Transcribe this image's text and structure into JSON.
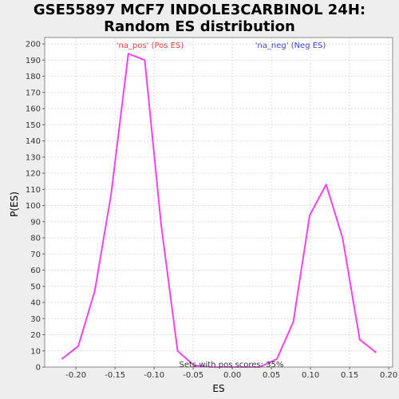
{
  "chart_data": {
    "type": "line",
    "title": [
      "GSE55897 MCF7 INDOLE3CARBINOL 24H:",
      "Random ES distribution"
    ],
    "xlabel": "ES",
    "ylabel": "P(ES)",
    "xlim": [
      -0.24,
      0.205
    ],
    "ylim": [
      0,
      204
    ],
    "x_ticks": [
      -0.2,
      -0.15,
      -0.1,
      -0.05,
      0.0,
      0.05,
      0.1,
      0.15,
      0.2
    ],
    "x_tick_labels": [
      "-0.20",
      "-0.15",
      "-0.10",
      "-0.05",
      "0.00",
      "0.05",
      "0.10",
      "0.15",
      "0.20"
    ],
    "y_ticks": [
      0,
      10,
      20,
      30,
      40,
      50,
      60,
      70,
      80,
      90,
      100,
      110,
      120,
      130,
      140,
      150,
      160,
      170,
      180,
      190,
      200
    ],
    "grid": true,
    "series": [
      {
        "name": "'na_pos' (Pos ES)",
        "color": "#ee44ee",
        "x": [
          -0.218,
          -0.197,
          -0.176,
          -0.155,
          -0.133,
          -0.112,
          -0.091,
          -0.07,
          -0.049,
          -0.028,
          -0.007,
          0.014,
          0.035,
          0.057,
          0.078,
          0.099,
          0.12,
          0.141,
          0.163,
          0.184
        ],
        "y": [
          5,
          13,
          47,
          107,
          194,
          190,
          88,
          10,
          1,
          0,
          0,
          0,
          0,
          5,
          28,
          94,
          113,
          80,
          17,
          9
        ]
      }
    ],
    "legend": [
      {
        "label": "'na_pos' (Pos ES)",
        "color": "#dd4444"
      },
      {
        "label": "'na_neg' (Neg ES)",
        "color": "#4444cc"
      }
    ],
    "annotation": "Sets with pos scores: 35%"
  }
}
